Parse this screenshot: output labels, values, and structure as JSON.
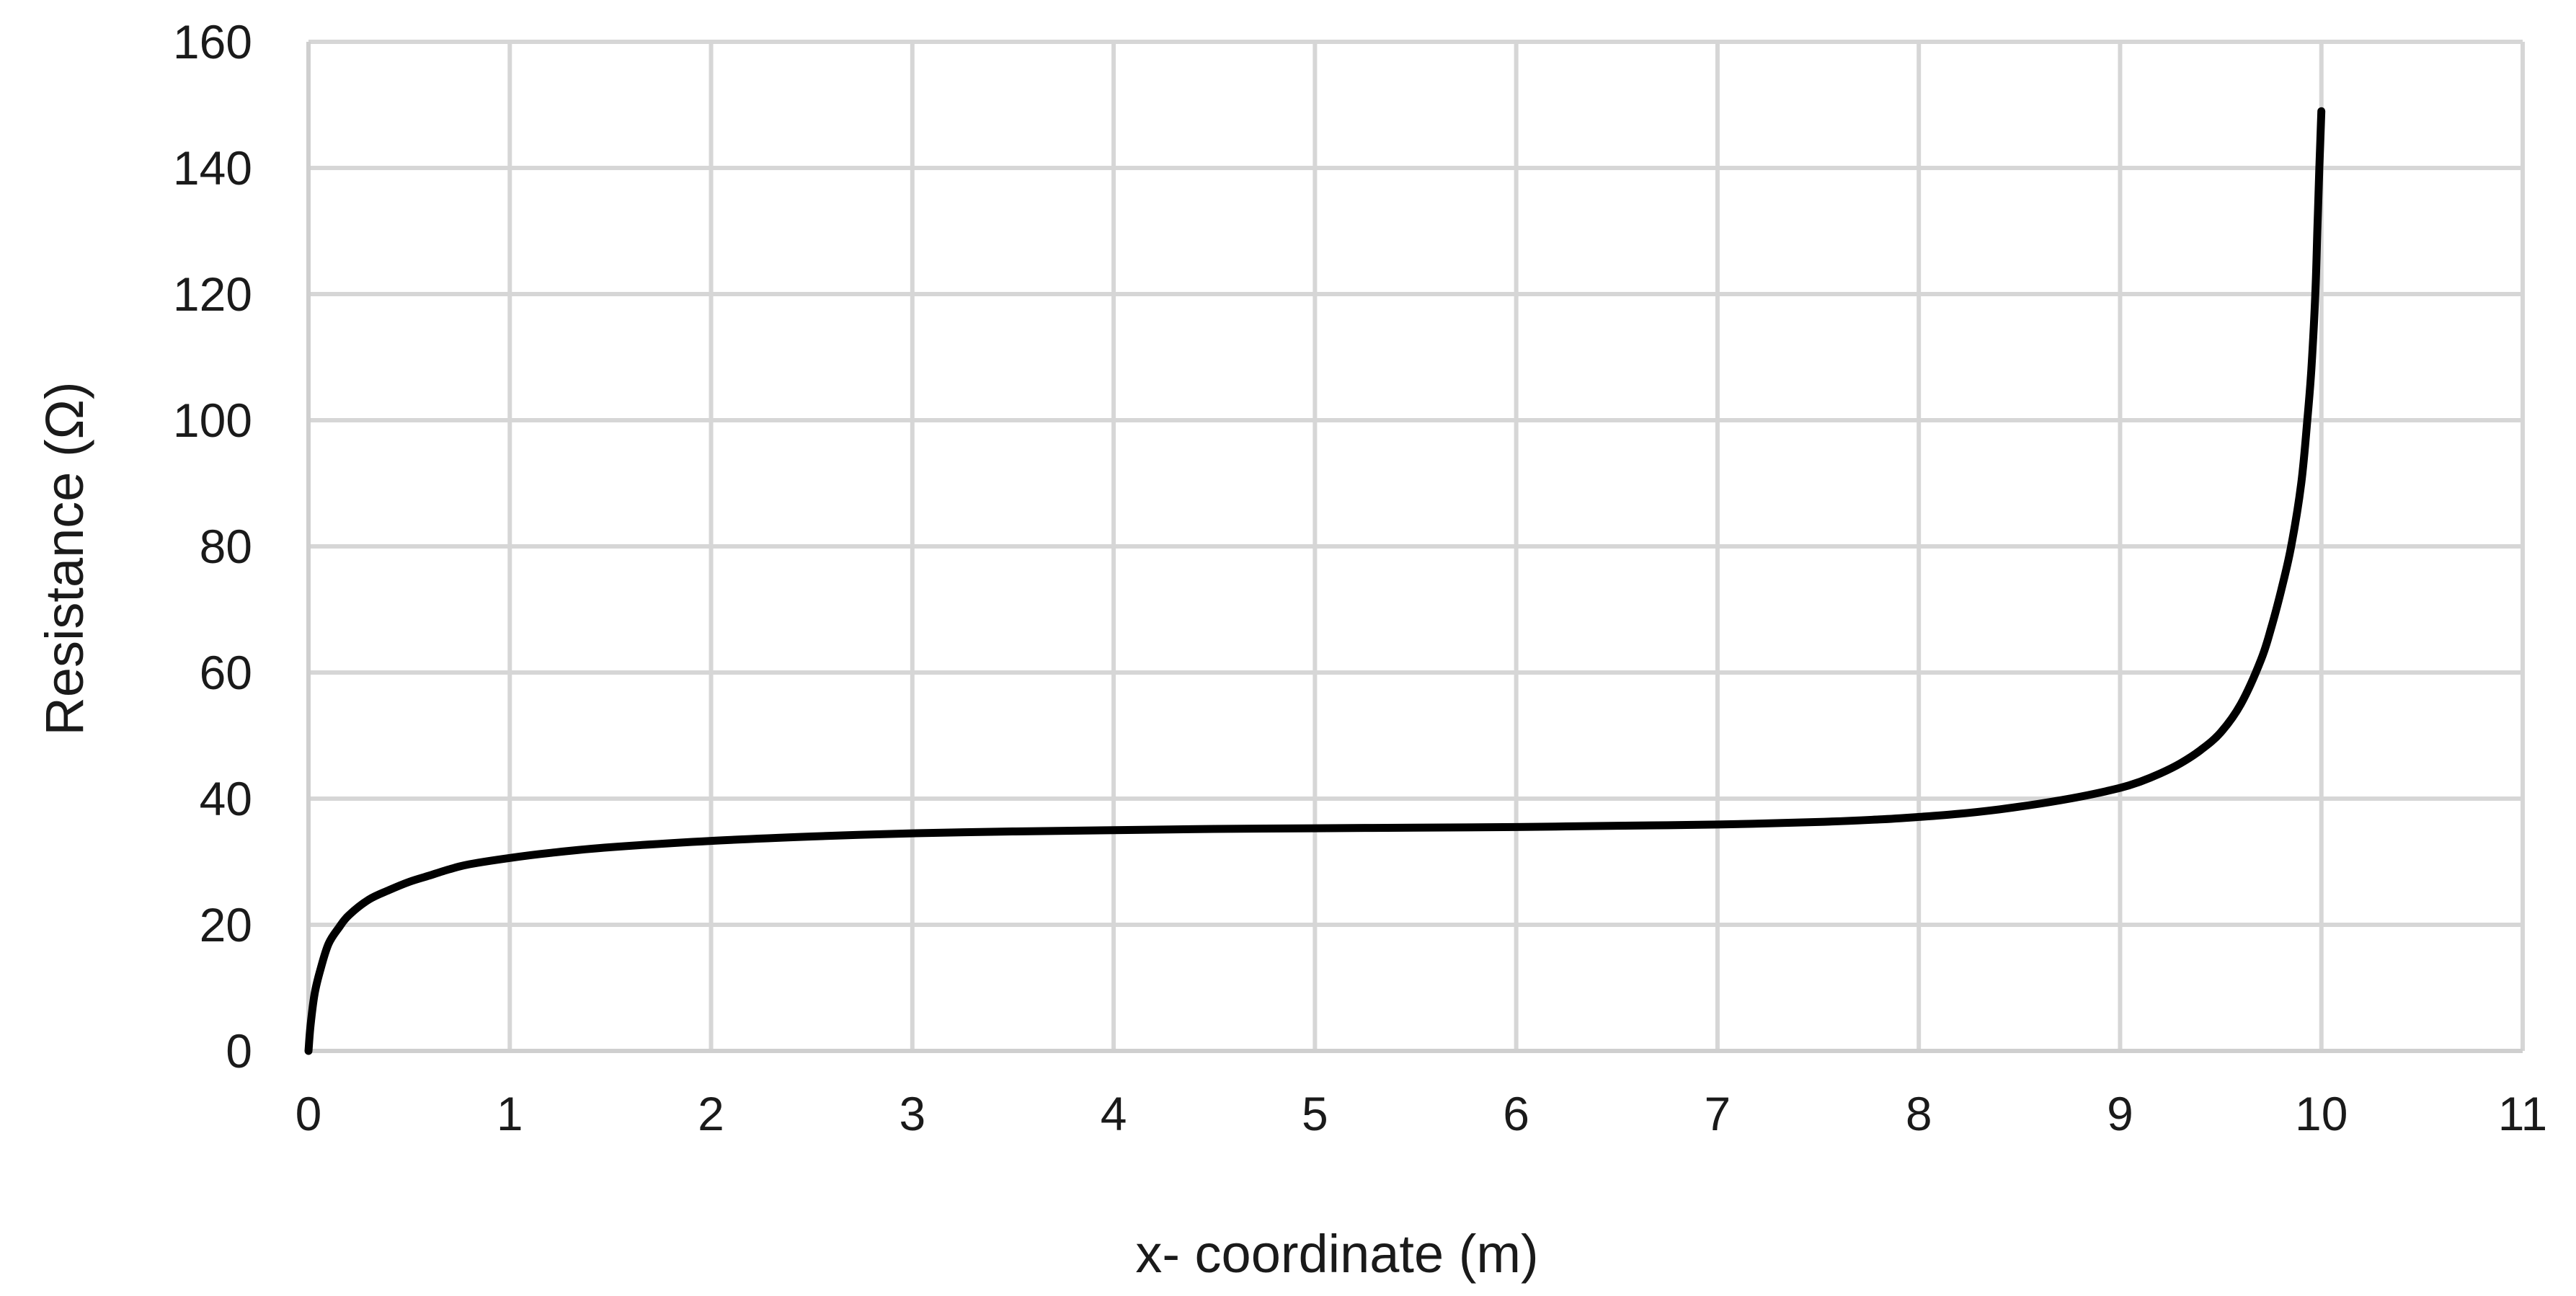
{
  "chart_data": {
    "type": "line",
    "title": "",
    "xlabel": "x- coordinate (m)",
    "ylabel": "Resistance (Ω)",
    "xlim": [
      0,
      11
    ],
    "ylim": [
      0,
      160
    ],
    "x_ticks": [
      0,
      1,
      2,
      3,
      4,
      5,
      6,
      7,
      8,
      9,
      10,
      11
    ],
    "y_ticks": [
      0,
      20,
      40,
      60,
      80,
      100,
      120,
      140,
      160
    ],
    "grid": true,
    "legend": "none",
    "series": [
      {
        "color": "#000000",
        "x": [
          0,
          0.01,
          0.03,
          0.06,
          0.1,
          0.15,
          0.2,
          0.3,
          0.4,
          0.5,
          0.6,
          0.7,
          0.8,
          1.0,
          1.2,
          1.5,
          2.0,
          2.5,
          3.0,
          3.5,
          4.0,
          4.5,
          5.0,
          5.5,
          6.0,
          6.5,
          7.0,
          7.5,
          7.8,
          8.0,
          8.2,
          8.4,
          8.6,
          8.8,
          9.0,
          9.1,
          9.2,
          9.3,
          9.4,
          9.5,
          9.6,
          9.7,
          9.75,
          9.8,
          9.85,
          9.9,
          9.93,
          9.95,
          9.97,
          9.98,
          9.99,
          10.0
        ],
        "y": [
          0,
          4,
          9,
          13,
          17,
          19.5,
          21.5,
          24,
          25.5,
          26.8,
          27.8,
          28.8,
          29.6,
          30.6,
          31.4,
          32.3,
          33.3,
          34.0,
          34.5,
          34.8,
          35.0,
          35.2,
          35.3,
          35.4,
          35.5,
          35.7,
          35.9,
          36.3,
          36.7,
          37.1,
          37.6,
          38.3,
          39.2,
          40.3,
          41.7,
          42.7,
          44,
          45.6,
          47.7,
          50.5,
          55,
          62,
          67,
          73,
          80,
          90,
          100,
          108,
          120,
          130,
          140,
          149
        ]
      }
    ]
  }
}
